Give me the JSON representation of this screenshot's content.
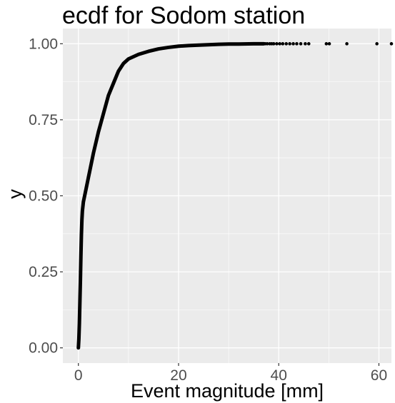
{
  "chart_data": {
    "type": "scatter",
    "title": "ecdf for Sodom station",
    "xlabel": "Event magnitude [mm]",
    "ylabel": "y",
    "xlim": [
      -3.1,
      62.5
    ],
    "ylim": [
      -0.05,
      1.05
    ],
    "x_ticks": [
      0,
      20,
      40,
      60
    ],
    "x_tick_labels": [
      "0",
      "20",
      "40",
      "60"
    ],
    "y_ticks": [
      0,
      0.25,
      0.5,
      0.75,
      1.0
    ],
    "y_tick_labels": [
      "0.00",
      "0.25",
      "0.50",
      "0.75",
      "1.00"
    ],
    "grid": true,
    "legend": "none",
    "colors": {
      "panel": "#ebebeb",
      "grid": "#ffffff",
      "points": "#000000",
      "ticks": "#4d4d4d"
    },
    "curve": [
      [
        0.0,
        0.0
      ],
      [
        0.1,
        0.03
      ],
      [
        0.2,
        0.08
      ],
      [
        0.3,
        0.15
      ],
      [
        0.4,
        0.22
      ],
      [
        0.5,
        0.3
      ],
      [
        0.6,
        0.37
      ],
      [
        0.7,
        0.42
      ],
      [
        0.8,
        0.45
      ],
      [
        1.0,
        0.48
      ],
      [
        1.5,
        0.52
      ],
      [
        2.0,
        0.56
      ],
      [
        3.0,
        0.64
      ],
      [
        4.0,
        0.71
      ],
      [
        5.0,
        0.77
      ],
      [
        6.0,
        0.83
      ],
      [
        7.0,
        0.87
      ],
      [
        8.0,
        0.91
      ],
      [
        9.0,
        0.935
      ],
      [
        10.0,
        0.95
      ],
      [
        12.0,
        0.965
      ],
      [
        14.0,
        0.975
      ],
      [
        16.0,
        0.983
      ],
      [
        18.0,
        0.988
      ],
      [
        20.0,
        0.992
      ],
      [
        22.0,
        0.994
      ],
      [
        25.0,
        0.996
      ],
      [
        28.0,
        0.998
      ],
      [
        30.0,
        0.999
      ],
      [
        32.0,
        0.999
      ],
      [
        35.0,
        1.0
      ],
      [
        37.0,
        1.0
      ]
    ],
    "tail_points": [
      [
        37.3,
        1.0
      ],
      [
        37.7,
        1.0
      ],
      [
        38.2,
        1.0
      ],
      [
        38.6,
        1.0
      ],
      [
        39.0,
        1.0
      ],
      [
        39.6,
        1.0
      ],
      [
        40.2,
        1.0
      ],
      [
        40.8,
        1.0
      ],
      [
        41.5,
        1.0
      ],
      [
        42.2,
        1.0
      ],
      [
        42.9,
        1.0
      ],
      [
        43.6,
        1.0
      ],
      [
        44.4,
        1.0
      ],
      [
        45.3,
        1.0
      ],
      [
        46.0,
        1.0
      ],
      [
        49.5,
        1.0
      ],
      [
        50.1,
        1.0
      ],
      [
        53.6,
        1.0
      ],
      [
        59.6,
        1.0
      ],
      [
        62.5,
        1.0
      ]
    ]
  }
}
